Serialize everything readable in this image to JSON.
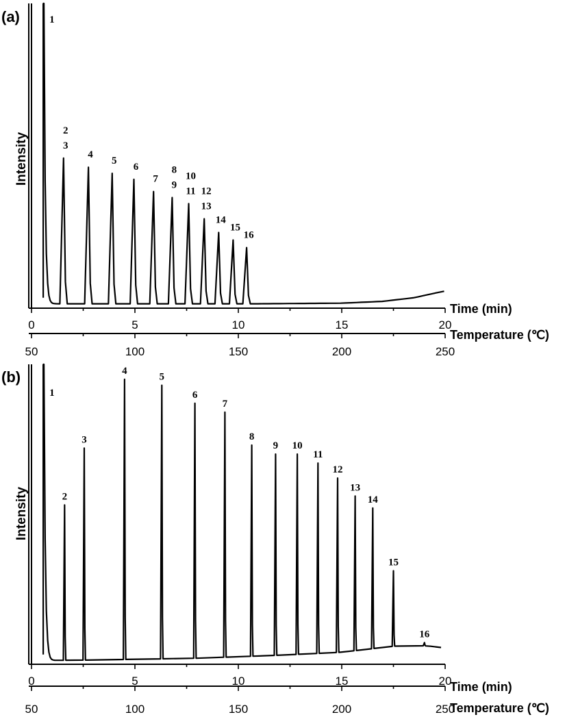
{
  "chart_data": [
    {
      "type": "line",
      "panel_label": "(a)",
      "ylabel": "Intensity",
      "xlabel": "Time (min)",
      "x2label": "Temperature (℃)",
      "xlim": [
        0,
        20
      ],
      "x2lim": [
        50,
        250
      ],
      "x_ticks": [
        0,
        5,
        10,
        15,
        20
      ],
      "x2_ticks": [
        50,
        100,
        150,
        200,
        250
      ],
      "grid": false,
      "peaks": [
        {
          "label": "1",
          "time": 0.6,
          "height": 1.0
        },
        {
          "label": "2",
          "time": 1.55,
          "height": 0.49
        },
        {
          "label": "3",
          "time": 1.55,
          "height": 0.49
        },
        {
          "label": "4",
          "time": 2.75,
          "height": 0.46
        },
        {
          "label": "5",
          "time": 3.9,
          "height": 0.44
        },
        {
          "label": "6",
          "time": 4.95,
          "height": 0.42
        },
        {
          "label": "7",
          "time": 5.9,
          "height": 0.38
        },
        {
          "label": "8",
          "time": 6.8,
          "height": 0.36
        },
        {
          "label": "9",
          "time": 6.8,
          "height": 0.36
        },
        {
          "label": "10",
          "time": 7.6,
          "height": 0.34
        },
        {
          "label": "11",
          "time": 7.6,
          "height": 0.34
        },
        {
          "label": "12",
          "time": 8.35,
          "height": 0.29
        },
        {
          "label": "13",
          "time": 8.35,
          "height": 0.29
        },
        {
          "label": "14",
          "time": 9.05,
          "height": 0.245
        },
        {
          "label": "15",
          "time": 9.75,
          "height": 0.22
        },
        {
          "label": "16",
          "time": 10.4,
          "height": 0.195
        }
      ],
      "baseline": [
        [
          0,
          0.01
        ],
        [
          11,
          0.01
        ],
        [
          15,
          0.012
        ],
        [
          17,
          0.018
        ],
        [
          18.5,
          0.03
        ],
        [
          19.5,
          0.045
        ],
        [
          20,
          0.052
        ]
      ]
    },
    {
      "type": "line",
      "panel_label": "(b)",
      "ylabel": "Intensity",
      "xlabel": "Time (min)",
      "x2label": "Temperature (℃)",
      "xlim": [
        0,
        20
      ],
      "x2lim": [
        50,
        250
      ],
      "x_ticks": [
        0,
        5,
        10,
        15,
        20
      ],
      "x2_ticks": [
        50,
        100,
        150,
        200,
        250
      ],
      "grid": false,
      "peaks": [
        {
          "label": "1",
          "time": 0.6,
          "height": 1.0
        },
        {
          "label": "2",
          "time": 1.6,
          "height": 0.53
        },
        {
          "label": "3",
          "time": 2.55,
          "height": 0.72
        },
        {
          "label": "4",
          "time": 4.5,
          "height": 0.95
        },
        {
          "label": "5",
          "time": 6.3,
          "height": 0.93
        },
        {
          "label": "6",
          "time": 7.9,
          "height": 0.87
        },
        {
          "label": "7",
          "time": 9.35,
          "height": 0.84
        },
        {
          "label": "8",
          "time": 10.65,
          "height": 0.73
        },
        {
          "label": "9",
          "time": 11.8,
          "height": 0.7
        },
        {
          "label": "10",
          "time": 12.85,
          "height": 0.7
        },
        {
          "label": "11",
          "time": 13.85,
          "height": 0.67
        },
        {
          "label": "12",
          "time": 14.8,
          "height": 0.62
        },
        {
          "label": "13",
          "time": 15.65,
          "height": 0.56
        },
        {
          "label": "14",
          "time": 16.5,
          "height": 0.52
        },
        {
          "label": "15",
          "time": 17.5,
          "height": 0.31
        },
        {
          "label": "16",
          "time": 19.0,
          "height": 0.07
        }
      ],
      "baseline": [
        [
          0,
          0.01
        ],
        [
          3,
          0.012
        ],
        [
          8,
          0.018
        ],
        [
          12,
          0.028
        ],
        [
          15,
          0.038
        ],
        [
          16.5,
          0.05
        ],
        [
          17.5,
          0.058
        ],
        [
          18.3,
          0.062
        ],
        [
          19.3,
          0.058
        ],
        [
          20,
          0.052
        ]
      ]
    }
  ]
}
